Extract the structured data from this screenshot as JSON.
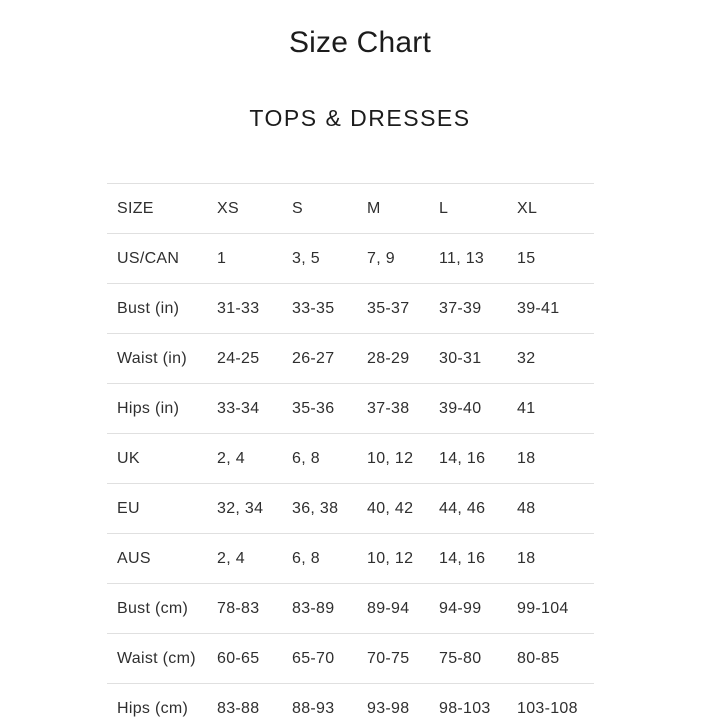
{
  "page": {
    "title": "Size Chart",
    "section_title": "TOPS & DRESSES"
  },
  "chart_data": {
    "type": "table",
    "title": "TOPS & DRESSES",
    "columns": [
      "SIZE",
      "XS",
      "S",
      "M",
      "L",
      "XL"
    ],
    "rows": [
      {
        "label": "US/CAN",
        "values": [
          "1",
          "3, 5",
          "7, 9",
          "11, 13",
          "15"
        ]
      },
      {
        "label": "Bust (in)",
        "values": [
          "31-33",
          "33-35",
          "35-37",
          "37-39",
          "39-41"
        ]
      },
      {
        "label": "Waist (in)",
        "values": [
          "24-25",
          "26-27",
          "28-29",
          "30-31",
          "32"
        ]
      },
      {
        "label": "Hips (in)",
        "values": [
          "33-34",
          "35-36",
          "37-38",
          "39-40",
          "41"
        ]
      },
      {
        "label": "UK",
        "values": [
          "2, 4",
          "6, 8",
          "10, 12",
          "14, 16",
          "18"
        ]
      },
      {
        "label": "EU",
        "values": [
          "32, 34",
          "36, 38",
          "40, 42",
          "44, 46",
          "48"
        ]
      },
      {
        "label": "AUS",
        "values": [
          "2, 4",
          "6, 8",
          "10, 12",
          "14, 16",
          "18"
        ]
      },
      {
        "label": "Bust (cm)",
        "values": [
          "78-83",
          "83-89",
          "89-94",
          "94-99",
          "99-104"
        ]
      },
      {
        "label": "Waist (cm)",
        "values": [
          "60-65",
          "65-70",
          "70-75",
          "75-80",
          "80-85"
        ]
      },
      {
        "label": "Hips (cm)",
        "values": [
          "83-88",
          "88-93",
          "93-98",
          "98-103",
          "103-108"
        ]
      }
    ]
  },
  "colors": {
    "background": "#ffffff",
    "heading_text": "#1c1c1c",
    "table_text": "#2f2f2f",
    "divider": "#e0e0e0"
  }
}
